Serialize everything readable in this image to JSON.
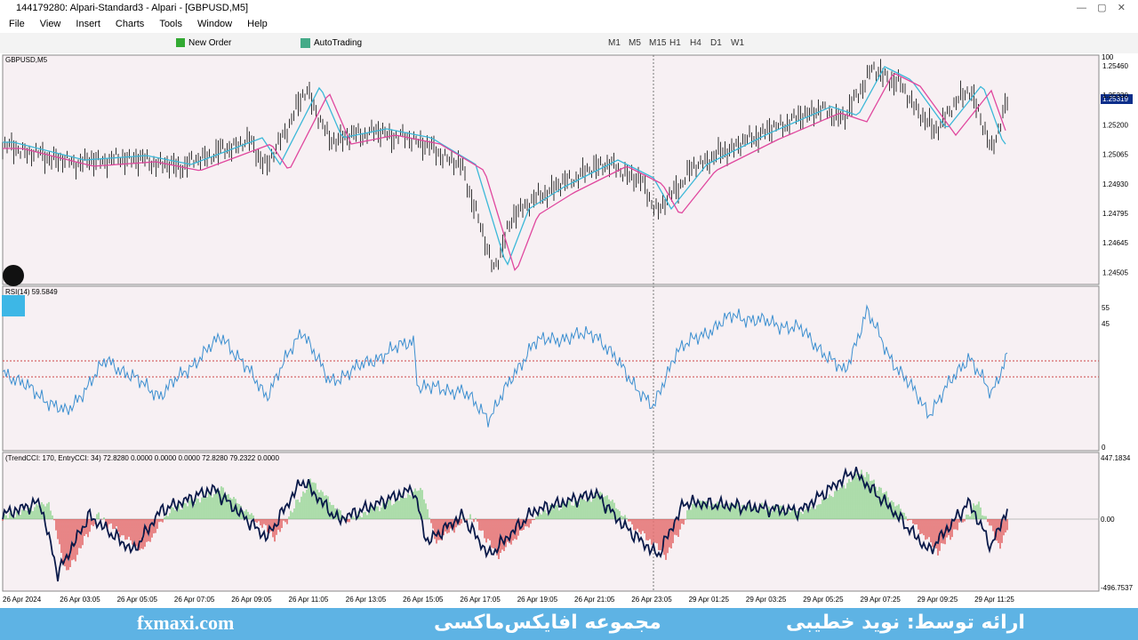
{
  "window": {
    "title": "144179280: Alpari-Standard3 - Alpari - [GBPUSD,M5]"
  },
  "menu": [
    "File",
    "View",
    "Insert",
    "Charts",
    "Tools",
    "Window",
    "Help"
  ],
  "toolbar": {
    "new_order": "New Order",
    "auto_trading": "AutoTrading",
    "timeframes": [
      "M1",
      "M5",
      "M15",
      "H1",
      "H4",
      "D1",
      "W1"
    ]
  },
  "chart": {
    "symbol": "GBPUSD,M5",
    "price_axis": [
      "1.25460",
      "1.25330",
      "1.25200",
      "1.25065",
      "1.24930",
      "1.24795",
      "1.24645",
      "1.24505"
    ],
    "current_price": "1.25319",
    "rsi": {
      "label": "RSI(14) 59.5849",
      "axis": [
        "100",
        "55",
        "45",
        "0"
      ]
    },
    "cci": {
      "label": "(TrendCCI: 170, EntryCCI: 34) 72.8280 0.0000 0.0000 0.0000 72.8280 79.2322 0.0000",
      "axis": [
        "447.1834",
        "0.00",
        "-496.7537"
      ]
    },
    "time_axis": [
      "26 Apr 2024",
      "26 Apr 03:05",
      "26 Apr 05:05",
      "26 Apr 07:05",
      "26 Apr 09:05",
      "26 Apr 11:05",
      "26 Apr 13:05",
      "26 Apr 15:05",
      "26 Apr 17:05",
      "26 Apr 19:05",
      "26 Apr 21:05",
      "26 Apr 23:05",
      "29 Apr 01:25",
      "29 Apr 03:25",
      "29 Apr 05:25",
      "29 Apr 07:25",
      "29 Apr 09:25",
      "29 Apr 11:25"
    ]
  },
  "footer": {
    "site": "fxmaxi.com",
    "brand": "مجموعه افایکس‌ماکسی",
    "presenter": "ارائه توسط: نوید خطیبی"
  }
}
